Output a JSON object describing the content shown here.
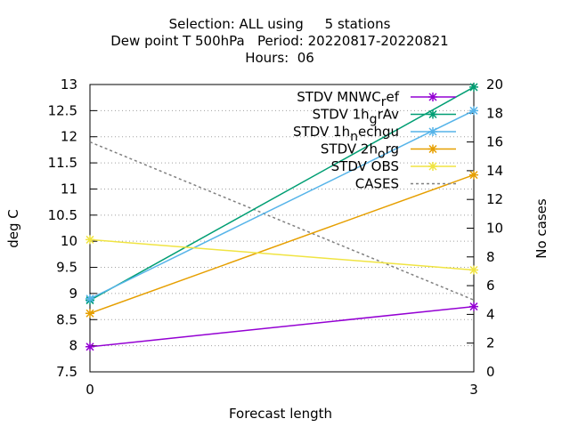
{
  "chart_data": {
    "type": "line",
    "title_lines": [
      "Selection: ALL using     5 stations",
      "Dew point T 500hPa   Period: 20220817-20220821",
      "Hours:  06"
    ],
    "xlabel": "Forecast length",
    "ylabel": "deg C",
    "y2label": "No cases",
    "x": [
      0,
      3
    ],
    "xticks": [
      "0",
      "3"
    ],
    "xlim": [
      0,
      3
    ],
    "ylim": [
      7.5,
      13
    ],
    "yticks": [
      "7.5",
      "8",
      "8.5",
      "9",
      "9.5",
      "10",
      "10.5",
      "11",
      "11.5",
      "12",
      "12.5",
      "13"
    ],
    "y2lim": [
      0,
      20
    ],
    "y2ticks": [
      "0",
      "2",
      "4",
      "6",
      "8",
      "10",
      "12",
      "14",
      "16",
      "18",
      "20"
    ],
    "grid": true,
    "legend_position": "top-right",
    "series": [
      {
        "name": "STDV MNWC_ref",
        "legend_parts": [
          [
            "STDV MNWC",
            "0"
          ],
          [
            "r",
            "sub"
          ],
          [
            "ef",
            "0"
          ]
        ],
        "color": "#9400d3",
        "axis": "y1",
        "values": [
          7.98,
          8.75
        ],
        "marker": "x",
        "dash": ""
      },
      {
        "name": "STDV 1h_grAv",
        "legend_parts": [
          [
            "STDV 1h",
            "0"
          ],
          [
            "g",
            "sub"
          ],
          [
            "rAv",
            "0"
          ]
        ],
        "color": "#009e73",
        "axis": "y1",
        "values": [
          8.87,
          12.95
        ],
        "marker": "x",
        "dash": ""
      },
      {
        "name": "STDV 1h_nechgu",
        "legend_parts": [
          [
            "STDV 1h",
            "0"
          ],
          [
            "n",
            "sub"
          ],
          [
            "echgu",
            "0"
          ]
        ],
        "color": "#56b4e9",
        "axis": "y1",
        "values": [
          8.9,
          12.5
        ],
        "marker": "x",
        "dash": ""
      },
      {
        "name": "STDV 2h_orig",
        "legend_parts": [
          [
            "STDV 2h",
            "0"
          ],
          [
            "o",
            "sub"
          ],
          [
            "rg",
            "0"
          ]
        ],
        "color": "#e69f00",
        "axis": "y1",
        "values": [
          8.62,
          11.27
        ],
        "marker": "x",
        "dash": ""
      },
      {
        "name": "STDV OBS",
        "legend_parts": [
          [
            "STDV OBS",
            "0"
          ]
        ],
        "color": "#f0e442",
        "axis": "y1",
        "values": [
          10.03,
          9.45
        ],
        "marker": "x",
        "dash": ""
      },
      {
        "name": "CASES",
        "legend_parts": [
          [
            "CASES",
            "0"
          ]
        ],
        "color": "#808080",
        "axis": "y2",
        "values": [
          16,
          5
        ],
        "marker": "",
        "dash": "3,3"
      }
    ]
  }
}
